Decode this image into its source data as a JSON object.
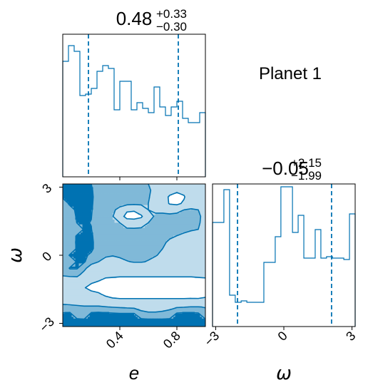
{
  "panel_label": "Planet 1",
  "colors": {
    "line": "#0072b2",
    "fill_dark": "#0072b2",
    "fill_mid": "#80b9d8",
    "fill_light": "#bfdcec",
    "axis": "#000000"
  },
  "chart_data": [
    {
      "type": "histogram",
      "parameter": "e",
      "title": {
        "median": "0.48",
        "plus": "+0.33",
        "minus": "−0.30"
      },
      "xlim": [
        0.0,
        1.0
      ],
      "bin_edges": [
        0.0,
        0.04,
        0.08,
        0.12,
        0.16,
        0.2,
        0.24,
        0.28,
        0.32,
        0.36,
        0.4,
        0.44,
        0.48,
        0.52,
        0.56,
        0.6,
        0.64,
        0.68,
        0.72,
        0.76,
        0.8,
        0.84,
        0.88,
        0.92,
        0.96,
        1.0
      ],
      "counts": [
        0.81,
        0.92,
        0.88,
        0.57,
        0.58,
        0.62,
        0.74,
        0.78,
        0.76,
        0.47,
        0.67,
        0.67,
        0.47,
        0.52,
        0.48,
        0.45,
        0.63,
        0.49,
        0.43,
        0.49,
        0.53,
        0.41,
        0.38,
        0.38,
        0.45
      ],
      "quantile_lines": [
        0.18,
        0.81
      ],
      "ticks": [
        0.4,
        0.8
      ]
    },
    {
      "type": "histogram",
      "parameter": "ω",
      "title": {
        "median": "−0.05",
        "plus": "+2.15",
        "minus": "−1.99"
      },
      "xlim": [
        -3.14,
        3.14
      ],
      "bin_edges": [
        -3.14,
        -2.89,
        -2.64,
        -2.39,
        -2.14,
        -1.88,
        -1.63,
        -1.38,
        -1.13,
        -0.88,
        -0.63,
        -0.38,
        -0.13,
        0.13,
        0.38,
        0.63,
        0.88,
        1.13,
        1.38,
        1.63,
        1.88,
        2.14,
        2.39,
        2.64,
        2.89,
        3.14
      ],
      "counts": [
        0.73,
        0.73,
        0.96,
        0.22,
        0.17,
        0.18,
        0.17,
        0.17,
        0.17,
        0.45,
        0.45,
        0.63,
        0.98,
        0.98,
        0.66,
        0.78,
        0.48,
        0.48,
        0.68,
        0.48,
        0.49,
        0.48,
        0.48,
        0.47,
        0.79
      ],
      "quantile_lines": [
        -2.04,
        2.1
      ],
      "ticks": [
        -3,
        0,
        3
      ],
      "xlabel": "ω"
    },
    {
      "type": "contour2d",
      "x_parameter": "e",
      "y_parameter": "ω",
      "xlim": [
        0.0,
        1.0
      ],
      "ylim": [
        -3.14,
        3.14
      ],
      "xticks": [
        0.4,
        0.8
      ],
      "yticks": [
        -3,
        0,
        3
      ],
      "xlabel": "e",
      "ylabel": "ω",
      "x": [
        0.0,
        0.05,
        0.1,
        0.15,
        0.2,
        0.25,
        0.3,
        0.35,
        0.4,
        0.45,
        0.5,
        0.55,
        0.6,
        0.65,
        0.7,
        0.75,
        0.8,
        0.85,
        0.9,
        0.95,
        1.0
      ],
      "y": [
        3.14,
        2.86,
        2.57,
        2.28,
        2.0,
        1.71,
        1.43,
        1.14,
        0.86,
        0.57,
        0.29,
        0.0,
        -0.29,
        -0.57,
        -0.86,
        -1.14,
        -1.43,
        -1.71,
        -2.0,
        -2.28,
        -2.57,
        -2.86,
        -3.14
      ],
      "levels": [
        0.25,
        0.55,
        0.85
      ],
      "density": [
        [
          0.92,
          0.95,
          0.93,
          0.9,
          0.85,
          0.62,
          0.58,
          0.56,
          0.57,
          0.58,
          0.58,
          0.56,
          0.55,
          0.52,
          0.48,
          0.45,
          0.48,
          0.5,
          0.46,
          0.42,
          0.4
        ],
        [
          0.95,
          0.97,
          0.96,
          0.93,
          0.9,
          0.64,
          0.6,
          0.58,
          0.59,
          0.6,
          0.6,
          0.58,
          0.56,
          0.53,
          0.48,
          0.4,
          0.3,
          0.35,
          0.45,
          0.42,
          0.4
        ],
        [
          0.92,
          0.96,
          0.97,
          0.95,
          0.92,
          0.66,
          0.62,
          0.6,
          0.61,
          0.62,
          0.61,
          0.59,
          0.56,
          0.5,
          0.42,
          0.2,
          0.15,
          0.22,
          0.48,
          0.45,
          0.42
        ],
        [
          0.6,
          0.92,
          0.96,
          0.94,
          0.9,
          0.66,
          0.62,
          0.6,
          0.61,
          0.62,
          0.6,
          0.58,
          0.55,
          0.5,
          0.43,
          0.22,
          0.18,
          0.3,
          0.5,
          0.48,
          0.46
        ],
        [
          0.55,
          0.7,
          0.93,
          0.92,
          0.88,
          0.64,
          0.6,
          0.58,
          0.5,
          0.3,
          0.28,
          0.45,
          0.55,
          0.54,
          0.52,
          0.5,
          0.52,
          0.55,
          0.56,
          0.55,
          0.52
        ],
        [
          0.55,
          0.62,
          0.9,
          0.9,
          0.86,
          0.62,
          0.58,
          0.56,
          0.38,
          0.15,
          0.14,
          0.2,
          0.52,
          0.56,
          0.58,
          0.58,
          0.58,
          0.58,
          0.58,
          0.56,
          0.53
        ],
        [
          0.57,
          0.6,
          0.86,
          0.88,
          0.84,
          0.6,
          0.57,
          0.56,
          0.55,
          0.42,
          0.4,
          0.46,
          0.55,
          0.58,
          0.59,
          0.6,
          0.6,
          0.6,
          0.58,
          0.56,
          0.52
        ],
        [
          0.58,
          0.6,
          0.65,
          0.88,
          0.86,
          0.62,
          0.58,
          0.58,
          0.58,
          0.58,
          0.58,
          0.58,
          0.58,
          0.59,
          0.6,
          0.6,
          0.6,
          0.59,
          0.57,
          0.55,
          0.5
        ],
        [
          0.6,
          0.62,
          0.88,
          0.92,
          0.9,
          0.65,
          0.6,
          0.6,
          0.6,
          0.6,
          0.6,
          0.6,
          0.6,
          0.6,
          0.6,
          0.58,
          0.55,
          0.52,
          0.48,
          0.4,
          0.35
        ],
        [
          0.62,
          0.65,
          0.9,
          0.93,
          0.92,
          0.68,
          0.62,
          0.6,
          0.6,
          0.6,
          0.6,
          0.6,
          0.6,
          0.6,
          0.58,
          0.52,
          0.42,
          0.35,
          0.3,
          0.3,
          0.32
        ],
        [
          0.62,
          0.65,
          0.88,
          0.92,
          0.91,
          0.7,
          0.64,
          0.6,
          0.6,
          0.6,
          0.6,
          0.6,
          0.6,
          0.58,
          0.55,
          0.45,
          0.35,
          0.3,
          0.45,
          0.35,
          0.35
        ],
        [
          0.62,
          0.88,
          0.9,
          0.9,
          0.8,
          0.62,
          0.58,
          0.56,
          0.58,
          0.6,
          0.6,
          0.6,
          0.58,
          0.56,
          0.52,
          0.45,
          0.35,
          0.3,
          0.3,
          0.3,
          0.32
        ],
        [
          0.6,
          0.62,
          0.88,
          0.88,
          0.65,
          0.55,
          0.48,
          0.46,
          0.5,
          0.54,
          0.56,
          0.56,
          0.54,
          0.5,
          0.45,
          0.4,
          0.35,
          0.32,
          0.3,
          0.3,
          0.3
        ],
        [
          0.58,
          0.88,
          0.88,
          0.62,
          0.4,
          0.35,
          0.34,
          0.34,
          0.38,
          0.4,
          0.42,
          0.42,
          0.4,
          0.38,
          0.36,
          0.34,
          0.32,
          0.3,
          0.3,
          0.3,
          0.3
        ],
        [
          0.58,
          0.6,
          0.62,
          0.45,
          0.35,
          0.3,
          0.3,
          0.3,
          0.3,
          0.3,
          0.3,
          0.3,
          0.3,
          0.3,
          0.3,
          0.3,
          0.3,
          0.3,
          0.3,
          0.3,
          0.3
        ],
        [
          0.4,
          0.42,
          0.4,
          0.32,
          0.28,
          0.25,
          0.2,
          0.18,
          0.15,
          0.15,
          0.15,
          0.15,
          0.15,
          0.15,
          0.15,
          0.15,
          0.15,
          0.15,
          0.15,
          0.18,
          0.2
        ],
        [
          0.35,
          0.32,
          0.28,
          0.26,
          0.2,
          0.15,
          0.1,
          0.08,
          0.06,
          0.06,
          0.06,
          0.06,
          0.06,
          0.06,
          0.06,
          0.06,
          0.06,
          0.06,
          0.08,
          0.1,
          0.15
        ],
        [
          0.4,
          0.38,
          0.36,
          0.34,
          0.3,
          0.28,
          0.2,
          0.12,
          0.1,
          0.1,
          0.1,
          0.1,
          0.1,
          0.1,
          0.1,
          0.1,
          0.1,
          0.1,
          0.12,
          0.15,
          0.2
        ],
        [
          0.45,
          0.42,
          0.4,
          0.38,
          0.38,
          0.38,
          0.36,
          0.34,
          0.32,
          0.32,
          0.32,
          0.32,
          0.32,
          0.32,
          0.32,
          0.32,
          0.32,
          0.32,
          0.32,
          0.3,
          0.3
        ],
        [
          0.62,
          0.62,
          0.6,
          0.58,
          0.58,
          0.58,
          0.56,
          0.54,
          0.52,
          0.5,
          0.48,
          0.46,
          0.45,
          0.45,
          0.46,
          0.5,
          0.52,
          0.54,
          0.56,
          0.56,
          0.54
        ],
        [
          0.88,
          0.9,
          0.62,
          0.58,
          0.9,
          0.92,
          0.9,
          0.88,
          0.86,
          0.86,
          0.86,
          0.62,
          0.58,
          0.58,
          0.6,
          0.62,
          0.88,
          0.9,
          0.9,
          0.88,
          0.62
        ],
        [
          0.92,
          0.93,
          0.92,
          0.9,
          0.92,
          0.94,
          0.93,
          0.92,
          0.92,
          0.92,
          0.92,
          0.92,
          0.9,
          0.9,
          0.9,
          0.92,
          0.93,
          0.94,
          0.93,
          0.92,
          0.9
        ],
        [
          0.92,
          0.93,
          0.92,
          0.9,
          0.92,
          0.94,
          0.93,
          0.92,
          0.92,
          0.92,
          0.92,
          0.92,
          0.9,
          0.9,
          0.9,
          0.92,
          0.93,
          0.94,
          0.93,
          0.92,
          0.9
        ]
      ]
    }
  ]
}
